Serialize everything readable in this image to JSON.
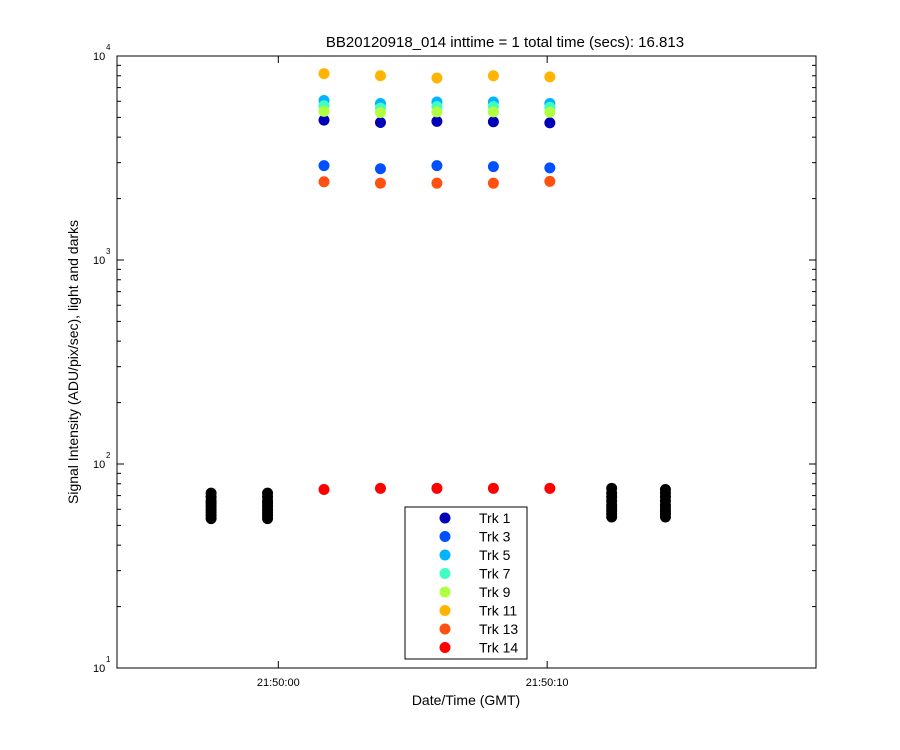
{
  "chart_data": {
    "type": "scatter",
    "title": "BB20120918_014 inttime = 1 total time (secs): 16.813",
    "xlabel": "Date/Time (GMT)",
    "ylabel": "Signal Intensity (ADU/pix/sec), light and darks",
    "yscale": "log",
    "xlim": [
      "21:49:54",
      "21:50:20"
    ],
    "ylim": [
      10,
      10000
    ],
    "x_ticks": [
      "21:50:00",
      "21:50:10"
    ],
    "y_ticks": [
      {
        "base": "10",
        "exp": "1"
      },
      {
        "base": "10",
        "exp": "2"
      },
      {
        "base": "10",
        "exp": "3"
      },
      {
        "base": "10",
        "exp": "4"
      }
    ],
    "grid": false,
    "legend_position": "bottom-center",
    "light_times": [
      "21:50:01.7",
      "21:50:03.8",
      "21:50:05.9",
      "21:50:08.0",
      "21:50:10.1"
    ],
    "series": [
      {
        "name": "Trk 1",
        "color": "#0000b8",
        "values": [
          4850,
          4720,
          4780,
          4760,
          4700
        ]
      },
      {
        "name": "Trk 3",
        "color": "#0050ff",
        "values": [
          2900,
          2800,
          2900,
          2870,
          2830
        ]
      },
      {
        "name": "Trk 5",
        "color": "#00b4ff",
        "values": [
          6050,
          5850,
          5950,
          5950,
          5850
        ]
      },
      {
        "name": "Trk 7",
        "color": "#40ffc0",
        "values": [
          5700,
          5550,
          5650,
          5650,
          5600
        ]
      },
      {
        "name": "Trk 9",
        "color": "#b0ff40",
        "values": [
          5350,
          5280,
          5320,
          5320,
          5300
        ]
      },
      {
        "name": "Trk 11",
        "color": "#ffb400",
        "values": [
          8200,
          8000,
          7800,
          8000,
          7900
        ]
      },
      {
        "name": "Trk 13",
        "color": "#ff5010",
        "values": [
          2420,
          2380,
          2380,
          2380,
          2430
        ]
      },
      {
        "name": "Trk 14",
        "color": "#ff0000",
        "values": [
          75,
          76,
          76,
          76,
          76
        ]
      }
    ],
    "darks": {
      "color": "#000000",
      "groups": [
        {
          "time": "21:49:57.5",
          "values": [
            54,
            56,
            58,
            60,
            62,
            64,
            66,
            69,
            72
          ]
        },
        {
          "time": "21:49:59.6",
          "values": [
            54,
            56,
            58,
            60,
            62,
            64,
            66,
            69,
            72
          ]
        },
        {
          "time": "21:50:12.4",
          "values": [
            55,
            57,
            59,
            61,
            63,
            66,
            69,
            72,
            76
          ]
        },
        {
          "time": "21:50:14.4",
          "values": [
            55,
            57,
            59,
            61,
            63,
            66,
            69,
            72,
            75
          ]
        }
      ]
    }
  }
}
